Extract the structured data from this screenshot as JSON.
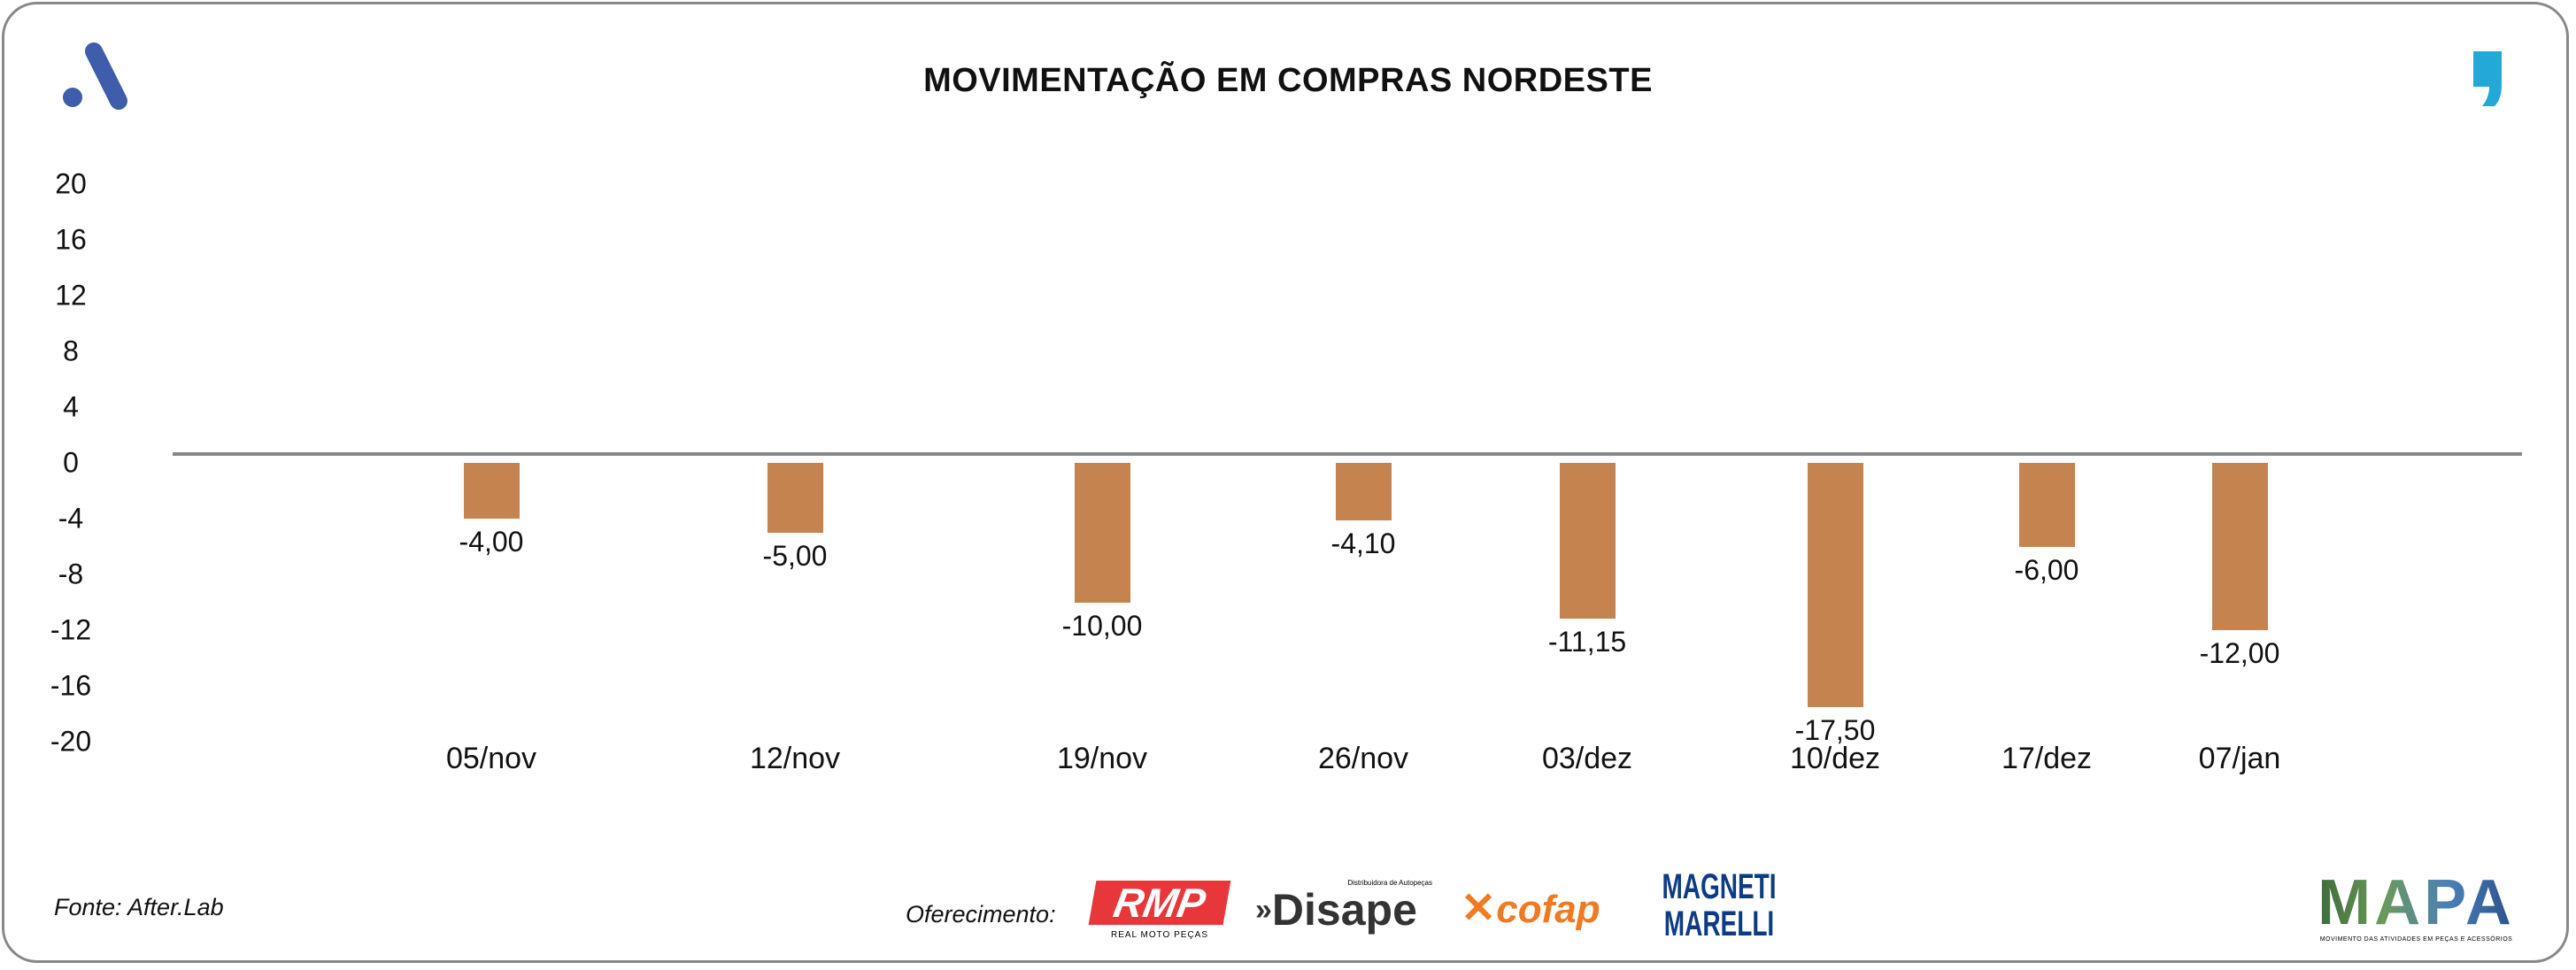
{
  "chart_data": {
    "type": "bar",
    "title": "MOVIMENTAÇÃO EM COMPRAS NORDESTE",
    "categories": [
      "05/nov",
      "12/nov",
      "19/nov",
      "26/nov",
      "03/dez",
      "10/dez",
      "17/dez",
      "07/jan"
    ],
    "values": [
      -4.0,
      -5.0,
      -10.0,
      -4.1,
      -11.15,
      -17.5,
      -6.0,
      -12.0
    ],
    "data_labels": [
      "-4,00",
      "-5,00",
      "-10,00",
      "-4,10",
      "-11,15",
      "-17,50",
      "-6,00",
      "-12,00"
    ],
    "ylim": [
      -20,
      20
    ],
    "yticks": [
      "20",
      "16",
      "12",
      "8",
      "4",
      "0",
      "-4",
      "-8",
      "-12",
      "-16",
      "-20"
    ],
    "ytick_values": [
      20,
      16,
      12,
      8,
      4,
      0,
      -4,
      -8,
      -12,
      -16,
      -20
    ],
    "grid": false,
    "bar_color": "#c4834f",
    "xlabel": "",
    "ylabel": ""
  },
  "footer": {
    "source": "Fonte: After.Lab",
    "sponsor_label": "Oferecimento:",
    "sponsors": [
      "RMP",
      "Disape",
      "cofap",
      "MAGNETI MARELLI"
    ],
    "rmp_tagline": "REAL MOTO PEÇAS",
    "disape_tagline": "Distribuidora de Autopeças",
    "mapa": "MAPA",
    "mapa_tagline": "MOVIMENTO DAS ATIVIDADES EM PEÇAS E ACESSÓRIOS"
  },
  "colors": {
    "brand_blue": "#3f5dab",
    "quote_cyan": "#23a8d8",
    "rmp_red": "#e8373a",
    "cofap_orange": "#f07a22",
    "marelli_blue": "#0d3c84"
  }
}
